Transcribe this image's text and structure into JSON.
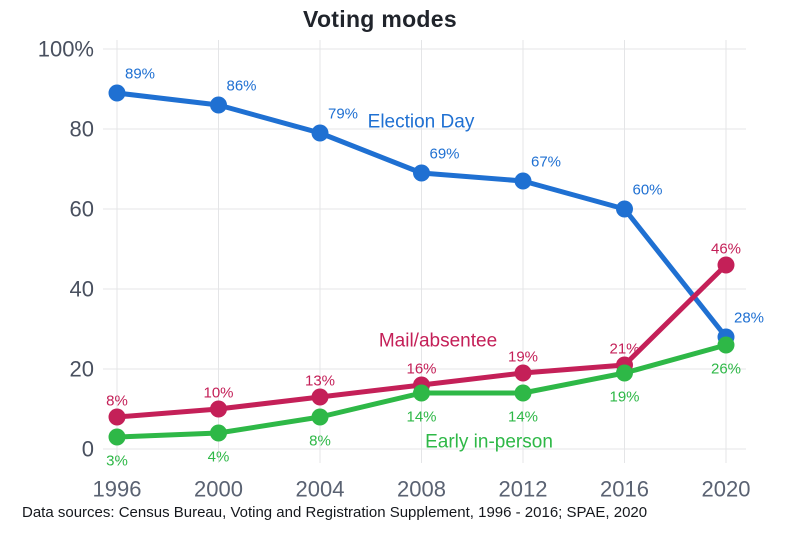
{
  "title": "Voting modes",
  "footnote": "Data sources: Census Bureau, Voting and Registration Supplement, 1996 - 2016; SPAE, 2020",
  "chart_data": {
    "type": "line",
    "title": "Voting modes",
    "categories": [
      "1996",
      "2000",
      "2004",
      "2008",
      "2012",
      "2016",
      "2020"
    ],
    "ylim": [
      0,
      100
    ],
    "yticks": [
      0,
      20,
      40,
      60,
      80,
      100
    ],
    "ytick_labels": [
      "0",
      "20",
      "40",
      "60",
      "80",
      "100%"
    ],
    "grid": true,
    "legend_position": "inline-labels",
    "series": [
      {
        "name": "Election Day",
        "color": "#1f70d2",
        "values": [
          89,
          86,
          79,
          69,
          67,
          60,
          28
        ],
        "data_labels": [
          "89%",
          "86%",
          "79%",
          "69%",
          "67%",
          "60%",
          "28%"
        ]
      },
      {
        "name": "Mail/absentee",
        "color": "#c42058",
        "values": [
          8,
          10,
          13,
          16,
          19,
          21,
          46
        ],
        "data_labels": [
          "8%",
          "10%",
          "13%",
          "16%",
          "19%",
          "21%",
          "46%"
        ]
      },
      {
        "name": "Early in-person",
        "color": "#2eb847",
        "values": [
          3,
          4,
          8,
          14,
          14,
          19,
          26
        ],
        "data_labels": [
          "3%",
          "4%",
          "8%",
          "14%",
          "14%",
          "19%",
          "26%"
        ]
      }
    ]
  },
  "style": {
    "background": "#ffffff",
    "grid_color": "#e4e5e7",
    "ytick_color": "#49505f",
    "xtick_color": "#5a6272",
    "title_color": "#20242b",
    "footnote_color": "#15181d"
  }
}
